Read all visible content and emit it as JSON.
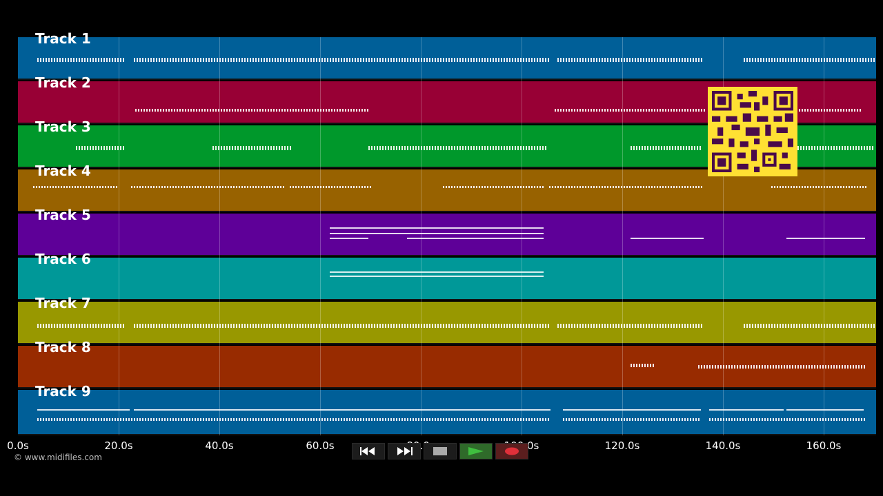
{
  "tracks": [
    {
      "label": "Track 1",
      "color": "#005f98"
    },
    {
      "label": "Track 2",
      "color": "#980035"
    },
    {
      "label": "Track 3",
      "color": "#00982b"
    },
    {
      "label": "Track 4",
      "color": "#986200"
    },
    {
      "label": "Track 5",
      "color": "#5e0098"
    },
    {
      "label": "Track 6",
      "color": "#009898"
    },
    {
      "label": "Track 7",
      "color": "#989800"
    },
    {
      "label": "Track 8",
      "color": "#982b00"
    },
    {
      "label": "Track 9",
      "color": "#005f98"
    }
  ],
  "axis": {
    "ticks": [
      "0.0s",
      "20.0s",
      "40.0s",
      "60.0s",
      "80.0s",
      "100.0s",
      "120.0s",
      "140.0s",
      "160.0s"
    ]
  },
  "copyright": "© www.midifiles.com",
  "transport": {
    "rewind": "rewind-icon",
    "fast_forward": "fast-forward-icon",
    "stop": "stop-icon",
    "play": "play-icon",
    "record": "record-icon"
  },
  "colors": {
    "qr_background": "#ffe033",
    "qr_foreground": "#4a0a4a",
    "play_green": "#3fbf3f",
    "record_red": "#e0303a"
  }
}
